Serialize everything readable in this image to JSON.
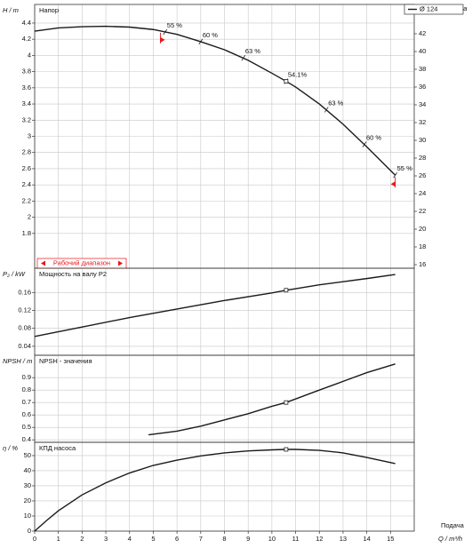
{
  "chart_data": [
    {
      "type": "line",
      "title": "Напор",
      "ylabel": "H / m",
      "y2label": "Δp / kPa",
      "ylim": [
        1.37,
        4.63
      ],
      "yticks": [
        1.8,
        2,
        2.2,
        2.4,
        2.6,
        2.8,
        3,
        3.2,
        3.4,
        3.6,
        3.8,
        4,
        4.2,
        4.4
      ],
      "y2lim": [
        15.6,
        45.3
      ],
      "y2ticks": [
        16,
        18,
        20,
        22,
        24,
        26,
        28,
        30,
        32,
        34,
        36,
        38,
        40,
        42
      ],
      "grid": true,
      "legend_loc": "upper right",
      "series": [
        {
          "name": "Ø 124",
          "color": "#1a1a1a",
          "x": [
            0,
            1,
            2,
            3,
            4,
            5,
            6,
            7,
            8,
            9,
            10,
            10.6,
            11,
            12,
            13,
            14,
            15.2
          ],
          "values": [
            4.3,
            4.34,
            4.355,
            4.36,
            4.35,
            4.32,
            4.26,
            4.17,
            4.07,
            3.94,
            3.78,
            3.68,
            3.61,
            3.4,
            3.15,
            2.87,
            2.52
          ]
        }
      ],
      "annotations": [
        {
          "text": "55 %",
          "x": 5.5,
          "y": 4.29
        },
        {
          "text": "60 %",
          "x": 7,
          "y": 4.17
        },
        {
          "text": "63 %",
          "x": 8.8,
          "y": 3.97
        },
        {
          "text": "54.1%",
          "x": 10.6,
          "y": 3.68
        },
        {
          "text": "63 %",
          "x": 12.3,
          "y": 3.33
        },
        {
          "text": "60 %",
          "x": 13.9,
          "y": 2.9
        },
        {
          "text": "55 %",
          "x": 15.2,
          "y": 2.52
        }
      ],
      "operating_range": {
        "label": "Рабочий диапазон",
        "x": [
          5.3,
          15.2
        ],
        "color": "#e8141b"
      },
      "duty_point": {
        "x": 10.6,
        "y": 3.68
      }
    },
    {
      "type": "line",
      "title": "Мощность на валу P2",
      "ylabel": "P₂ / kW",
      "ylim": [
        0.02,
        0.214
      ],
      "yticks": [
        0.04,
        0.08,
        0.12,
        0.16
      ],
      "grid": true,
      "series": [
        {
          "color": "#1a1a1a",
          "x": [
            0,
            2,
            4,
            6,
            8,
            10,
            10.6,
            12,
            14,
            15.2
          ],
          "values": [
            0.062,
            0.083,
            0.104,
            0.123,
            0.142,
            0.159,
            0.165,
            0.177,
            0.191,
            0.2
          ]
        }
      ],
      "duty_point": {
        "x": 10.6,
        "y": 0.165
      }
    },
    {
      "type": "line",
      "title": "NPSH - значения",
      "ylabel": "NPSH / m",
      "ylim": [
        0.38,
        1.08
      ],
      "yticks": [
        0.4,
        0.5,
        0.6,
        0.7,
        0.8,
        0.9
      ],
      "grid": true,
      "series": [
        {
          "color": "#1a1a1a",
          "x": [
            4.8,
            6,
            7,
            8,
            9,
            10,
            10.6,
            12,
            13,
            14,
            15.2
          ],
          "values": [
            0.44,
            0.47,
            0.51,
            0.56,
            0.61,
            0.67,
            0.7,
            0.8,
            0.87,
            0.94,
            1.01
          ]
        }
      ],
      "duty_point": {
        "x": 10.6,
        "y": 0.7
      }
    },
    {
      "type": "line",
      "title": "КПД насоса",
      "ylabel": "η / %",
      "xlabel": "Q / m³/h",
      "xcaption": "Подача",
      "ylim": [
        0,
        58.8
      ],
      "yticks": [
        0,
        10,
        20,
        30,
        40,
        50
      ],
      "grid": true,
      "xlim": [
        0,
        16
      ],
      "xticks": [
        0,
        1,
        2,
        3,
        4,
        5,
        6,
        7,
        8,
        9,
        10,
        11,
        12,
        13,
        14,
        15
      ],
      "series": [
        {
          "color": "#1a1a1a",
          "x": [
            0,
            0.5,
            1,
            2,
            3,
            4,
            5,
            6,
            7,
            8,
            9,
            10,
            10.6,
            11,
            12,
            13,
            14,
            15.2
          ],
          "values": [
            0,
            7,
            13.5,
            24,
            32,
            38.5,
            43.5,
            47,
            49.8,
            51.8,
            53.1,
            53.8,
            54.1,
            54.1,
            53.5,
            51.8,
            48.8,
            44.7
          ]
        }
      ],
      "duty_point": {
        "x": 10.6,
        "y": 54.1
      }
    }
  ]
}
